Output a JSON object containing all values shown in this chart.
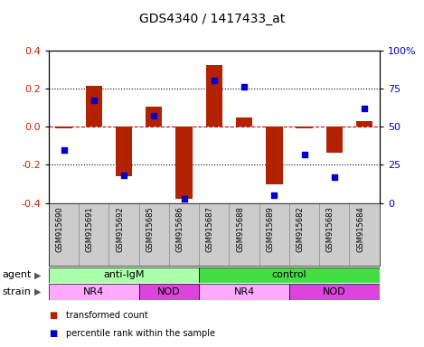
{
  "title": "GDS4340 / 1417433_at",
  "samples": [
    "GSM915690",
    "GSM915691",
    "GSM915692",
    "GSM915685",
    "GSM915686",
    "GSM915687",
    "GSM915688",
    "GSM915689",
    "GSM915682",
    "GSM915683",
    "GSM915684"
  ],
  "bar_values": [
    -0.01,
    0.215,
    -0.26,
    0.105,
    -0.38,
    0.325,
    0.05,
    -0.3,
    -0.01,
    -0.135,
    0.03
  ],
  "dot_values": [
    35,
    67,
    18,
    57,
    3,
    80,
    76,
    5,
    32,
    17,
    62
  ],
  "bar_color": "#b22200",
  "dot_color": "#0000cc",
  "ylim_left": [
    -0.4,
    0.4
  ],
  "ylim_right": [
    0,
    100
  ],
  "yticks_left": [
    -0.4,
    -0.2,
    0.0,
    0.2,
    0.4
  ],
  "yticks_right": [
    0,
    25,
    50,
    75,
    100
  ],
  "ytick_labels_right": [
    "0",
    "25",
    "50",
    "75",
    "100%"
  ],
  "agent_groups": [
    {
      "label": "anti-IgM",
      "start": 0,
      "end": 5,
      "color": "#aaffaa"
    },
    {
      "label": "control",
      "start": 5,
      "end": 11,
      "color": "#44dd44"
    }
  ],
  "strain_groups": [
    {
      "label": "NR4",
      "start": 0,
      "end": 3,
      "color": "#ffaaff"
    },
    {
      "label": "NOD",
      "start": 3,
      "end": 5,
      "color": "#dd44dd"
    },
    {
      "label": "NR4",
      "start": 5,
      "end": 8,
      "color": "#ffaaff"
    },
    {
      "label": "NOD",
      "start": 8,
      "end": 11,
      "color": "#dd44dd"
    }
  ],
  "legend_bar_label": "transformed count",
  "legend_dot_label": "percentile rank within the sample",
  "plot_bg_color": "#ffffff"
}
